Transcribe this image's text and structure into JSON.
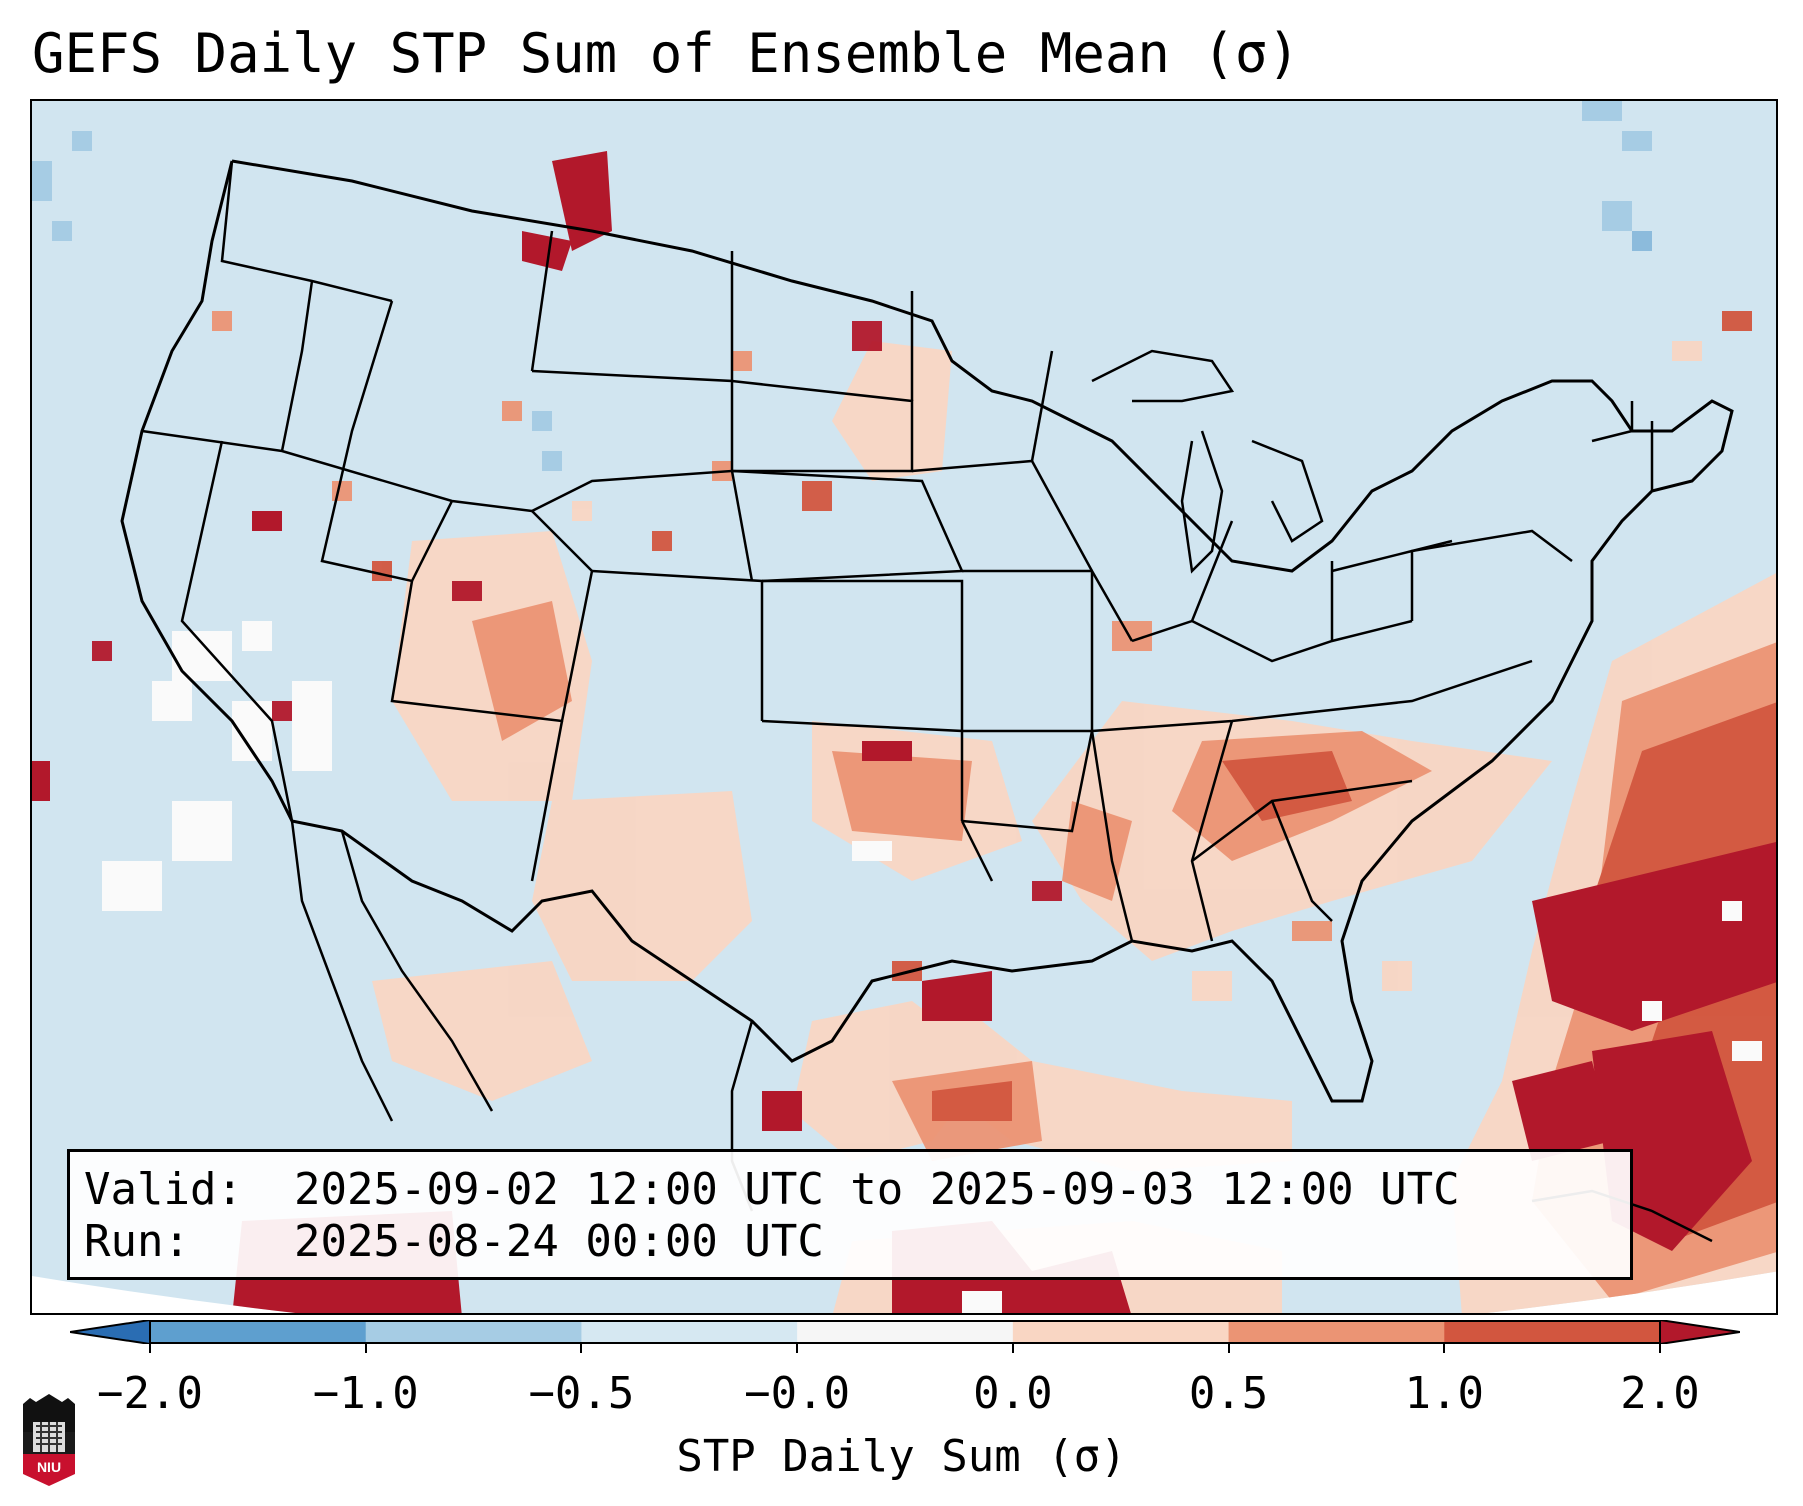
{
  "title": "GEFS Daily STP Sum of Ensemble Mean (σ)",
  "info": {
    "valid_key": "Valid:",
    "valid_value": "2025-09-02 12:00 UTC to 2025-09-03 12:00 UTC",
    "run_key": "Run:",
    "run_value": "2025-08-24 00:00 UTC"
  },
  "colorbar": {
    "label": "STP Daily Sum (σ)",
    "ticks": [
      "−2.0",
      "−1.0",
      "−0.5",
      "−0.0",
      "0.0",
      "0.5",
      "1.0",
      "2.0"
    ],
    "colors": [
      "#2a6db3",
      "#5e9fcf",
      "#a6cce4",
      "#d6e8f2",
      "#f6f6f6",
      "#f9d6c3",
      "#eb9474",
      "#d2563f",
      "#b2182b"
    ]
  },
  "map": {
    "region": "Continental United States",
    "background_color": "#d1e5f0",
    "outline_color": "#000000"
  },
  "logo": {
    "text": "NIU"
  }
}
